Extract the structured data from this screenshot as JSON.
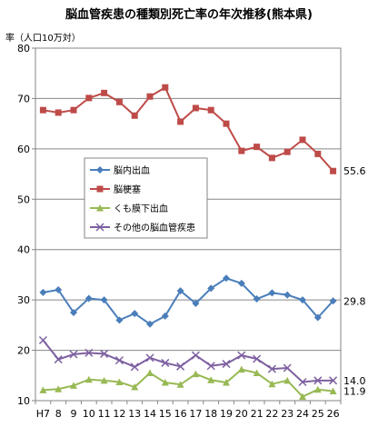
{
  "chart_data": {
    "type": "line",
    "title": "脳血管疾患の種類別死亡率の年次推移(熊本県)",
    "ylabel": "率（人口10万対）",
    "xlabel": "",
    "categories": [
      "H7",
      "8",
      "9",
      "10",
      "11",
      "12",
      "13",
      "14",
      "15",
      "16",
      "17",
      "18",
      "19",
      "20",
      "21",
      "22",
      "23",
      "24",
      "25",
      "26"
    ],
    "ylim": [
      10,
      80
    ],
    "yticks": [
      10,
      20,
      30,
      40,
      50,
      60,
      70,
      80
    ],
    "legend_position": "left-middle",
    "series": [
      {
        "name": "脳内出血",
        "color": "#4a7ebb",
        "marker": "diamond",
        "values": [
          31.5,
          32.0,
          27.5,
          30.3,
          30.0,
          26.0,
          27.3,
          25.2,
          26.8,
          31.8,
          29.3,
          32.3,
          34.3,
          33.3,
          30.2,
          31.4,
          31.0,
          30.0,
          26.5,
          29.8
        ],
        "end_label": "29.8"
      },
      {
        "name": "脳梗塞",
        "color": "#be4b48",
        "marker": "square",
        "values": [
          67.7,
          67.2,
          67.7,
          70.1,
          71.1,
          69.3,
          66.6,
          70.4,
          72.2,
          65.4,
          68.1,
          67.7,
          65.0,
          59.6,
          60.4,
          58.2,
          59.4,
          61.8,
          59.0,
          55.6
        ],
        "end_label": "55.6"
      },
      {
        "name": "くも膜下出血",
        "color": "#98b954",
        "marker": "triangle",
        "values": [
          12.1,
          12.3,
          13.0,
          14.2,
          14.0,
          13.7,
          12.7,
          15.5,
          13.6,
          13.2,
          15.3,
          14.1,
          13.6,
          16.2,
          15.5,
          13.3,
          14.0,
          10.8,
          12.2,
          11.9
        ],
        "end_label": "11.9"
      },
      {
        "name": "その他の脳血管疾患",
        "color": "#7d60a0",
        "marker": "x",
        "values": [
          22.0,
          18.2,
          19.2,
          19.5,
          19.3,
          18.0,
          16.7,
          18.5,
          17.5,
          16.8,
          19.0,
          16.9,
          17.3,
          19.0,
          18.3,
          16.3,
          16.5,
          13.7,
          14.0,
          14.0
        ],
        "end_label": "14.0"
      }
    ]
  }
}
